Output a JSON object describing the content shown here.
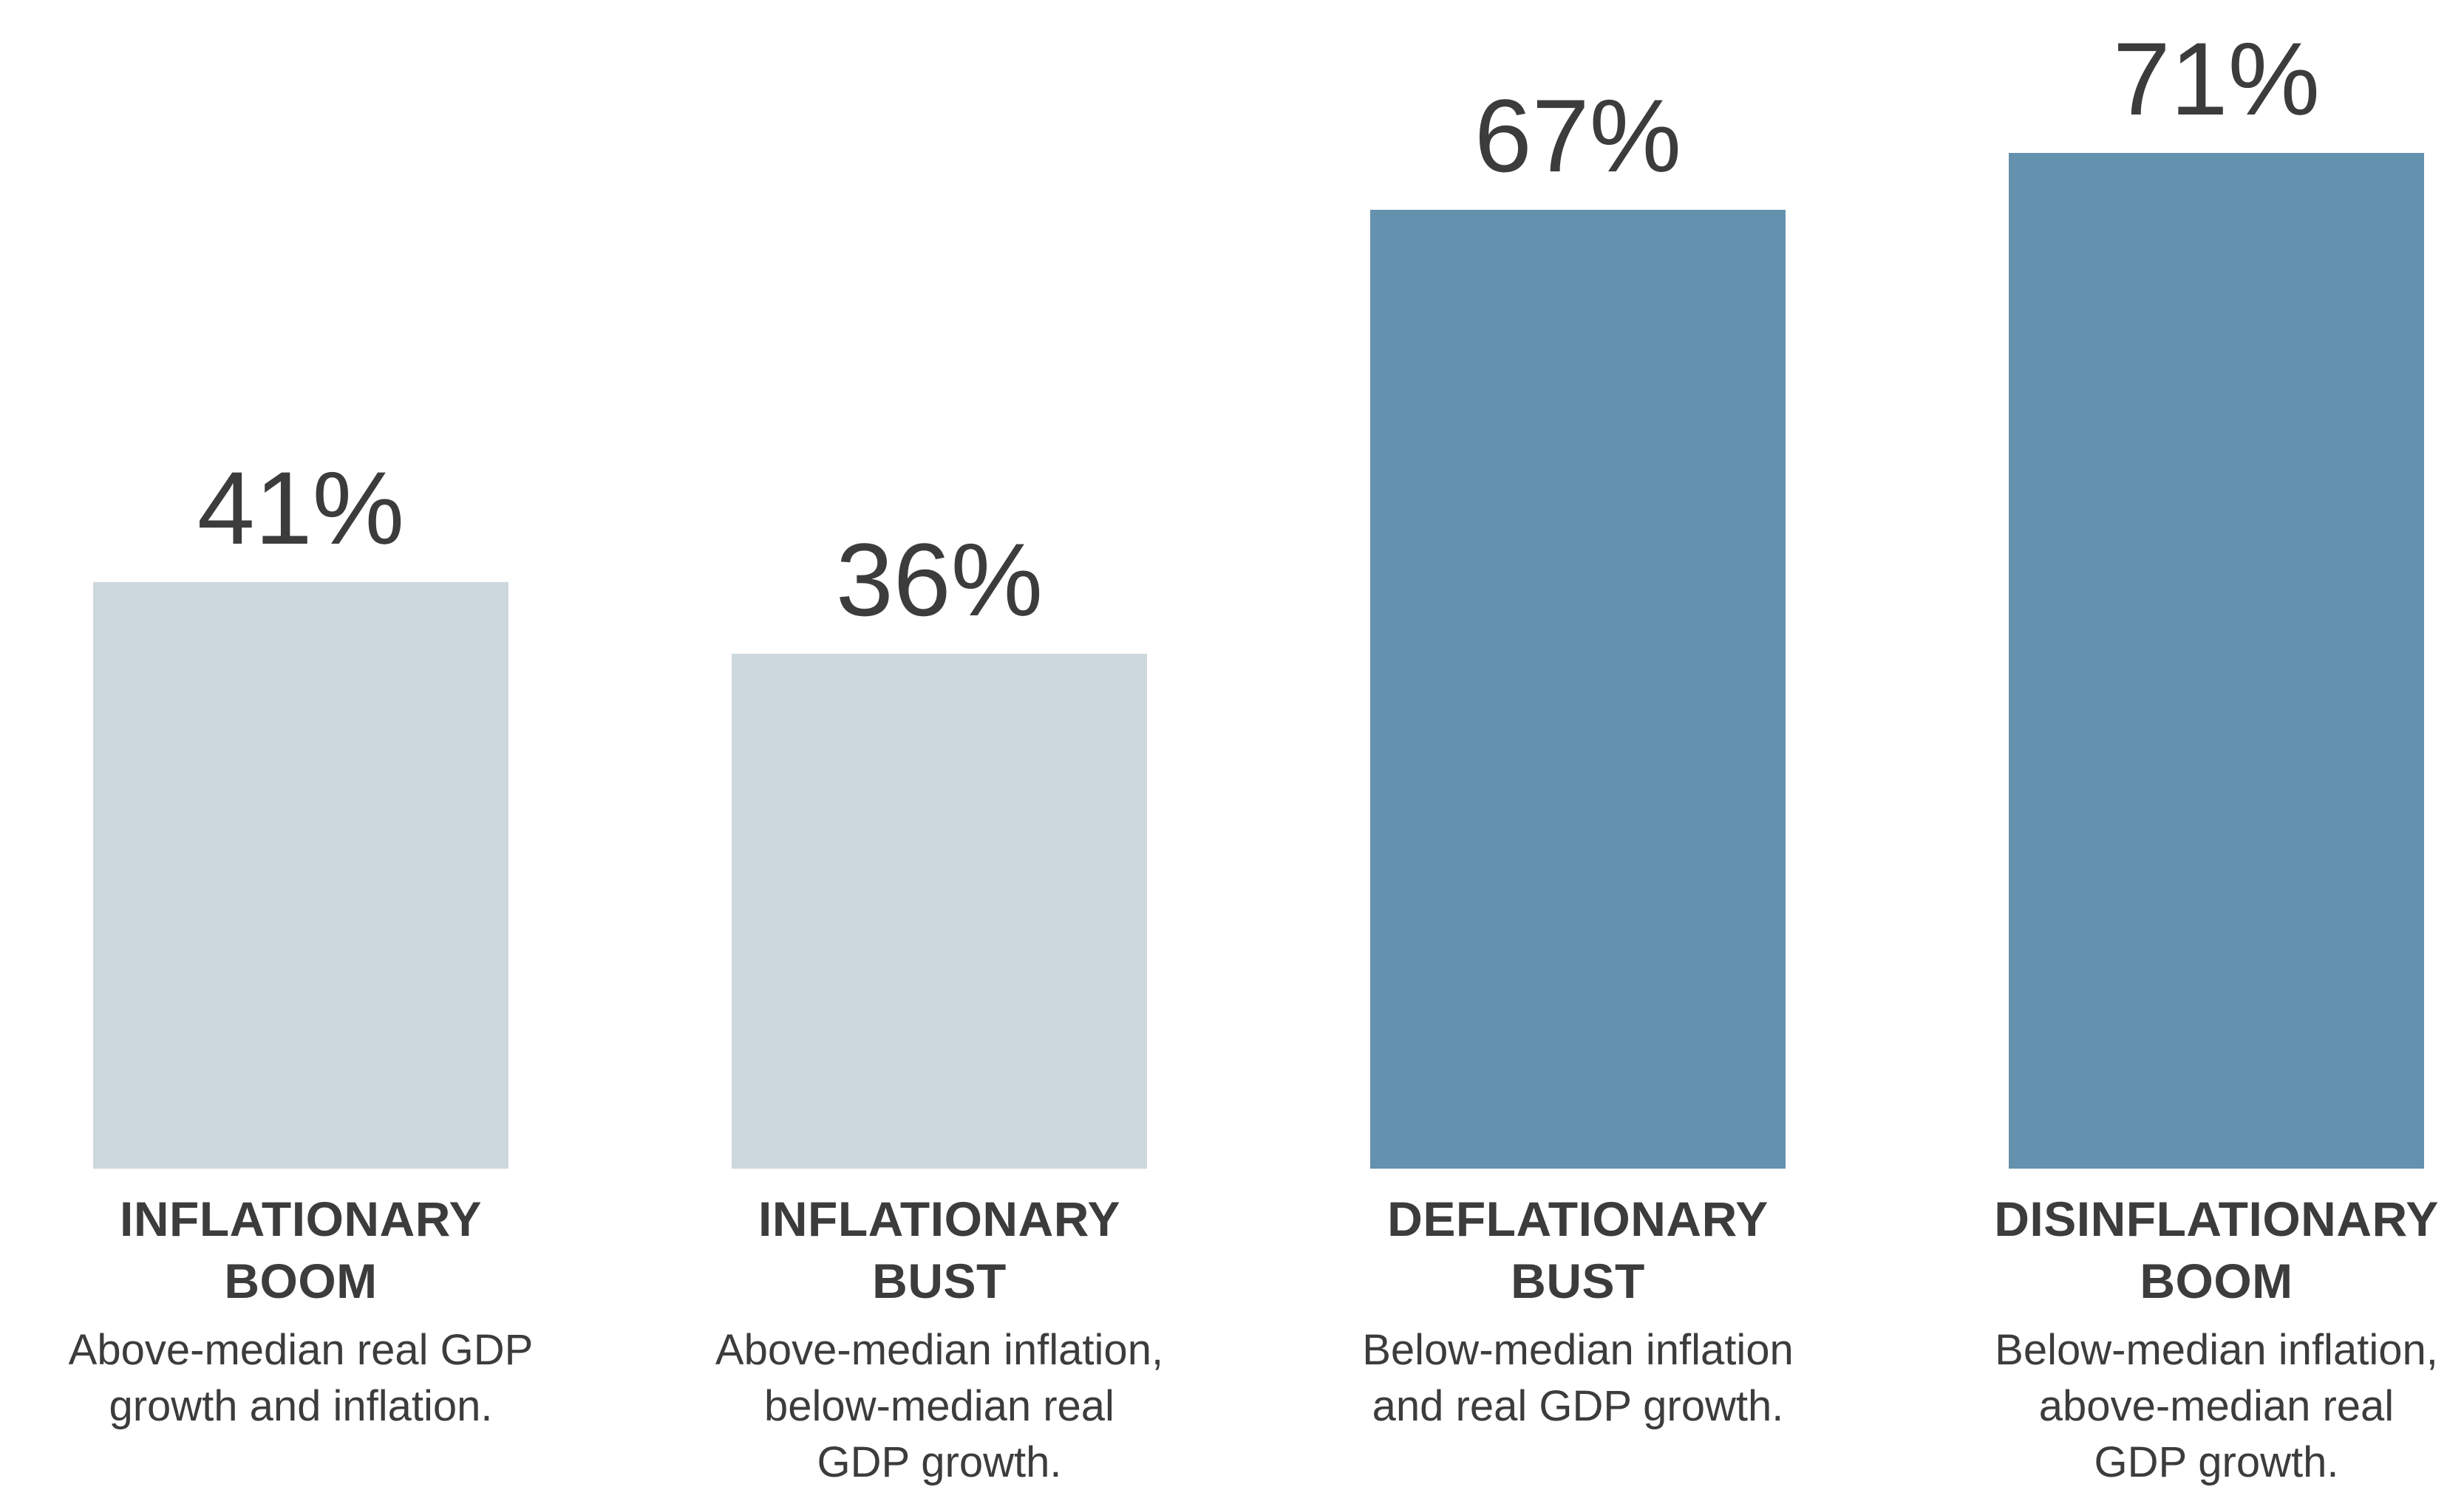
{
  "chart_data": {
    "type": "bar",
    "title": "",
    "xlabel": "",
    "ylabel": "",
    "unit": "%",
    "ylim": [
      0,
      100
    ],
    "grid": false,
    "legend": false,
    "background": "#ffffff",
    "text_color": "#3c3c3c",
    "categories": [
      "INFLATIONARY\nBOOM",
      "INFLATIONARY\nBUST",
      "DEFLATIONARY\nBUST",
      "DISINFLATIONARY\nBOOM"
    ],
    "values": [
      41,
      36,
      67,
      71
    ],
    "value_labels": [
      "41%",
      "36%",
      "67%",
      "71%"
    ],
    "descriptions": [
      "Above-median real GDP\ngrowth and inflation.",
      "Above-median inflation,\nbelow-median real\nGDP growth.",
      "Below-median inflation\nand real GDP growth.",
      "Below-median inflation,\nabove-median real\nGDP growth."
    ],
    "bar_colors": [
      "#cdd8de",
      "#cdd8de",
      "#6491ae",
      "#6491ae"
    ]
  }
}
